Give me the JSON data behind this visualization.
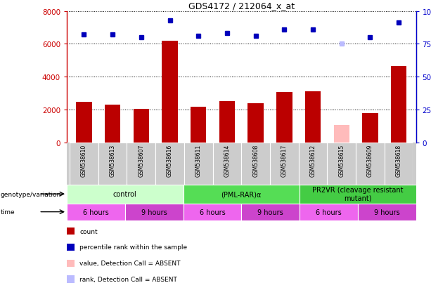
{
  "title": "GDS4172 / 212064_x_at",
  "samples": [
    "GSM538610",
    "GSM538613",
    "GSM538607",
    "GSM538616",
    "GSM538611",
    "GSM538614",
    "GSM538608",
    "GSM538617",
    "GSM538612",
    "GSM538615",
    "GSM538609",
    "GSM538618"
  ],
  "bar_values": [
    2450,
    2300,
    2050,
    6200,
    2150,
    2500,
    2400,
    3050,
    3100,
    1050,
    1800,
    4650
  ],
  "bar_absent": [
    false,
    false,
    false,
    false,
    false,
    false,
    false,
    false,
    false,
    true,
    false,
    false
  ],
  "rank_values": [
    82,
    82,
    80,
    93,
    81,
    83,
    81,
    86,
    86,
    75,
    80,
    91
  ],
  "rank_absent": [
    false,
    false,
    false,
    false,
    false,
    false,
    false,
    false,
    false,
    true,
    false,
    false
  ],
  "bar_color_normal": "#bb0000",
  "bar_color_absent": "#ffbbbb",
  "rank_color_normal": "#0000bb",
  "rank_color_absent": "#bbbbff",
  "ylim_left": [
    0,
    8000
  ],
  "ylim_right": [
    0,
    100
  ],
  "yticks_left": [
    0,
    2000,
    4000,
    6000,
    8000
  ],
  "yticks_right": [
    0,
    25,
    50,
    75,
    100
  ],
  "ytick_labels_right": [
    "0",
    "25",
    "50",
    "75",
    "100%"
  ],
  "genotype_groups": [
    {
      "label": "control",
      "start": 0,
      "end": 4,
      "color": "#ccffcc"
    },
    {
      "label": "(PML-RAR)α",
      "start": 4,
      "end": 8,
      "color": "#55dd55"
    },
    {
      "label": "PR2VR (cleavage resistant\nmutant)",
      "start": 8,
      "end": 12,
      "color": "#44cc44"
    }
  ],
  "time_groups": [
    {
      "label": "6 hours",
      "start": 0,
      "end": 2,
      "color": "#ee66ee"
    },
    {
      "label": "9 hours",
      "start": 2,
      "end": 4,
      "color": "#cc44cc"
    },
    {
      "label": "6 hours",
      "start": 4,
      "end": 6,
      "color": "#ee66ee"
    },
    {
      "label": "9 hours",
      "start": 6,
      "end": 8,
      "color": "#cc44cc"
    },
    {
      "label": "6 hours",
      "start": 8,
      "end": 10,
      "color": "#ee66ee"
    },
    {
      "label": "9 hours",
      "start": 10,
      "end": 12,
      "color": "#cc44cc"
    }
  ],
  "legend_items": [
    {
      "label": "count",
      "color": "#bb0000"
    },
    {
      "label": "percentile rank within the sample",
      "color": "#0000bb"
    },
    {
      "label": "value, Detection Call = ABSENT",
      "color": "#ffbbbb"
    },
    {
      "label": "rank, Detection Call = ABSENT",
      "color": "#bbbbff"
    }
  ],
  "genotype_label": "genotype/variation",
  "time_label": "time",
  "sample_bg_color": "#cccccc",
  "background_color": "#ffffff",
  "left_tick_color": "#cc0000",
  "right_tick_color": "#0000cc",
  "left_spine_color": "#cc0000",
  "right_spine_color": "#0000cc"
}
